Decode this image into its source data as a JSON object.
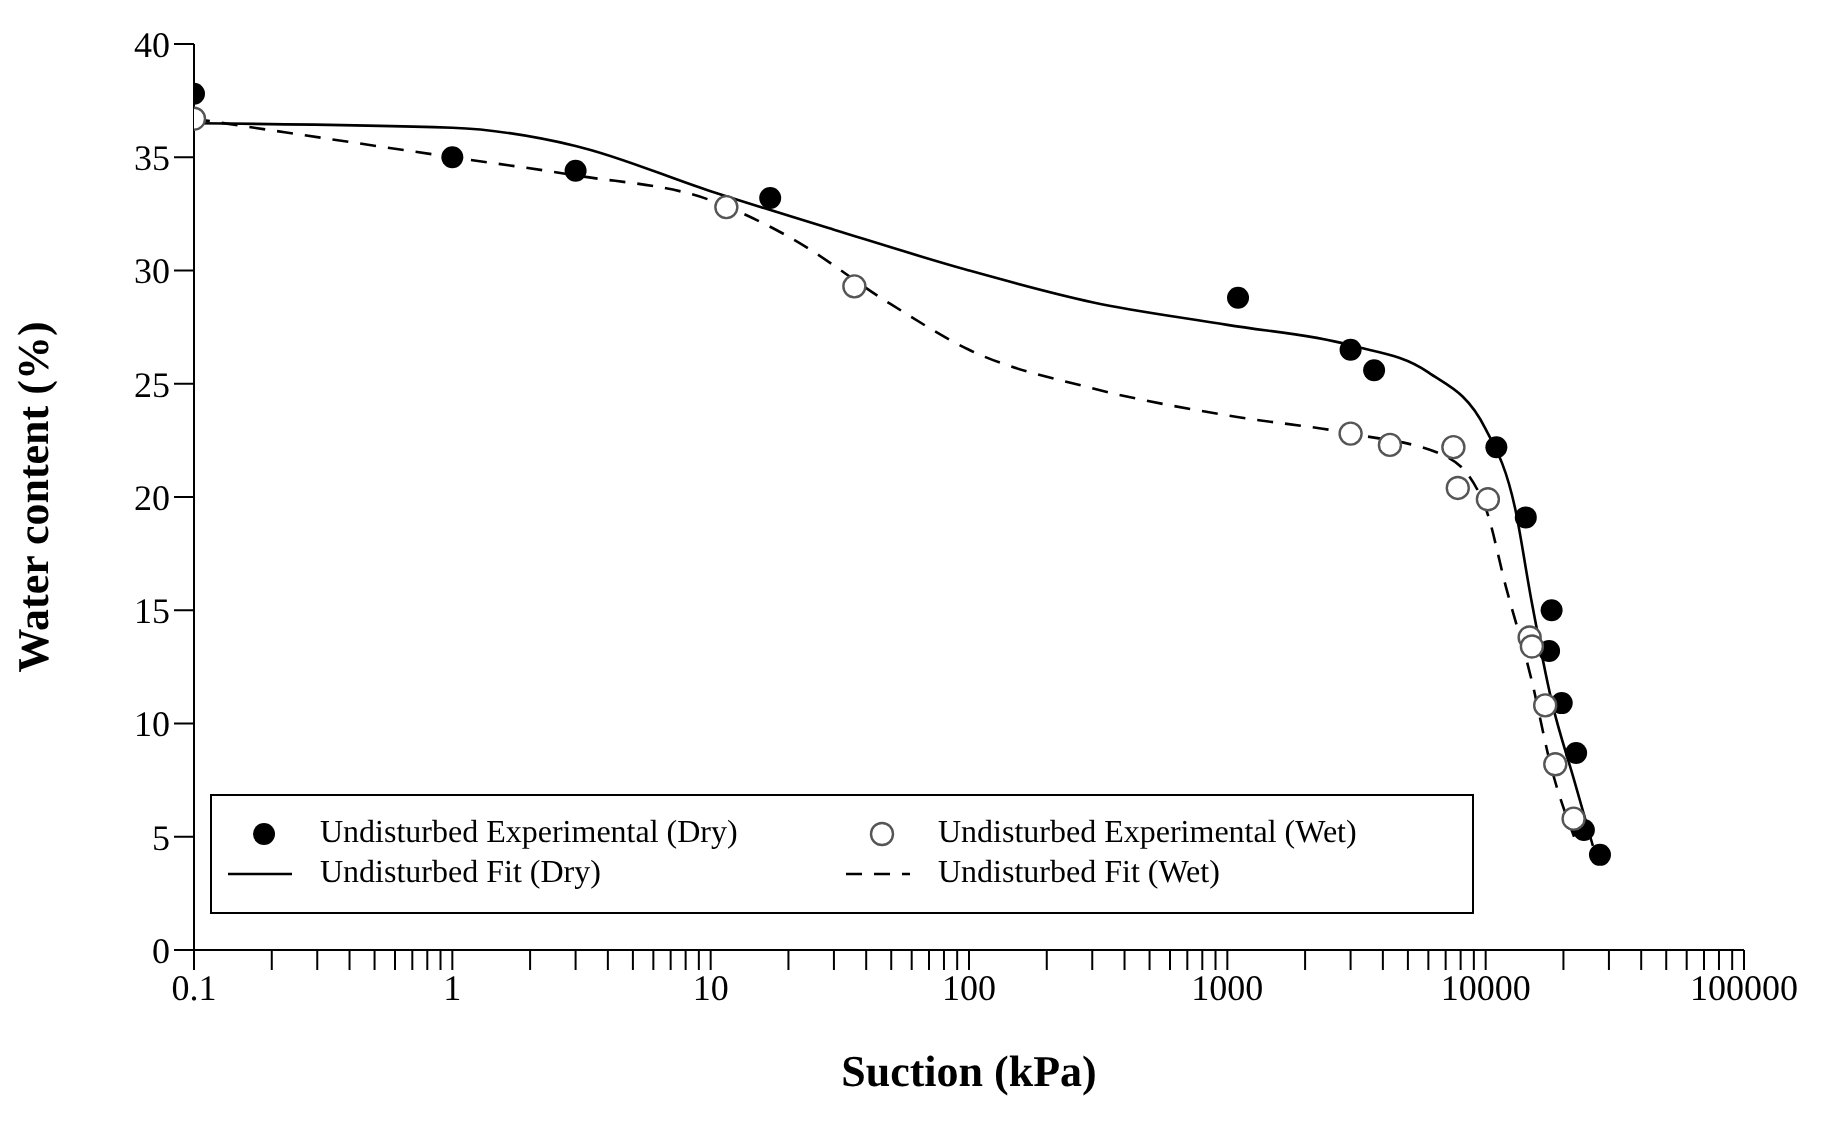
{
  "chart_data": {
    "type": "scatter",
    "xlabel": "Suction (kPa)",
    "ylabel": "Water content (%)",
    "log": "x",
    "xlim": [
      0.1,
      100000
    ],
    "ylim": [
      0,
      40
    ],
    "xticks": [
      0.1,
      {
        "value": 0.2,
        "label": null
      },
      {
        "value": 0.3,
        "label": null
      },
      {
        "value": 0.4,
        "label": null
      },
      {
        "value": 0.5,
        "label": null
      },
      {
        "value": 0.6,
        "label": null
      },
      {
        "value": 0.7,
        "label": null
      },
      {
        "value": 0.8,
        "label": null
      },
      {
        "value": 0.9,
        "label": null
      },
      1,
      {
        "value": 2,
        "label": null
      },
      {
        "value": 3,
        "label": null
      },
      {
        "value": 4,
        "label": null
      },
      {
        "value": 5,
        "label": null
      },
      {
        "value": 6,
        "label": null
      },
      {
        "value": 7,
        "label": null
      },
      {
        "value": 8,
        "label": null
      },
      {
        "value": 9,
        "label": null
      },
      10,
      {
        "value": 20,
        "label": null
      },
      {
        "value": 30,
        "label": null
      },
      {
        "value": 40,
        "label": null
      },
      {
        "value": 50,
        "label": null
      },
      {
        "value": 60,
        "label": null
      },
      {
        "value": 70,
        "label": null
      },
      {
        "value": 80,
        "label": null
      },
      {
        "value": 90,
        "label": null
      },
      100,
      {
        "value": 200,
        "label": null
      },
      {
        "value": 300,
        "label": null
      },
      {
        "value": 400,
        "label": null
      },
      {
        "value": 500,
        "label": null
      },
      {
        "value": 600,
        "label": null
      },
      {
        "value": 700,
        "label": null
      },
      {
        "value": 800,
        "label": null
      },
      {
        "value": 900,
        "label": null
      },
      1000,
      {
        "value": 2000,
        "label": null
      },
      {
        "value": 3000,
        "label": null
      },
      {
        "value": 4000,
        "label": null
      },
      {
        "value": 5000,
        "label": null
      },
      {
        "value": 6000,
        "label": null
      },
      {
        "value": 7000,
        "label": null
      },
      {
        "value": 8000,
        "label": null
      },
      {
        "value": 9000,
        "label": null
      },
      10000,
      {
        "value": 20000,
        "label": null
      },
      {
        "value": 30000,
        "label": null
      },
      {
        "value": 40000,
        "label": null
      },
      {
        "value": 50000,
        "label": null
      },
      {
        "value": 60000,
        "label": null
      },
      {
        "value": 70000,
        "label": null
      },
      {
        "value": 80000,
        "label": null
      },
      {
        "value": 90000,
        "label": null
      },
      100000
    ],
    "yticks": [
      0,
      5,
      10,
      15,
      20,
      25,
      30,
      35,
      40
    ],
    "grid": false,
    "legend": "bottom left",
    "series": [
      {
        "name": "Undisturbed Experimental (Dry)",
        "marker": "circle",
        "color": "#000000",
        "x": [
          0.1,
          1,
          3,
          17,
          1100,
          3000,
          3700,
          11000,
          14300,
          18000,
          17600,
          19700,
          22400,
          24000,
          27700
        ],
        "values": [
          37.8,
          35.0,
          34.4,
          33.2,
          28.8,
          26.5,
          25.6,
          22.2,
          19.1,
          15.0,
          13.2,
          10.9,
          8.7,
          5.3,
          4.2
        ]
      },
      {
        "name": "Undisturbed Experimental (Wet)",
        "marker": "circle",
        "color": "#555555",
        "x": [
          0.1,
          11.5,
          36,
          3000,
          4260,
          7500,
          7800,
          10200,
          14800,
          15100,
          17000,
          18600,
          21900
        ],
        "values": [
          36.7,
          32.8,
          29.3,
          22.8,
          22.3,
          22.2,
          20.4,
          19.9,
          13.8,
          13.4,
          10.8,
          8.2,
          5.8
        ]
      },
      {
        "name": "Undisturbed Fit (Dry)",
        "type": "line",
        "marker": "none",
        "color": "#000000",
        "line_style": "solid",
        "x": [
          0.1,
          1,
          3,
          10,
          30,
          100,
          300,
          1000,
          3000,
          6000,
          10000,
          13000,
          15000,
          18000,
          22000,
          26000
        ],
        "values": [
          36.5,
          36.3,
          35.5,
          33.5,
          31.8,
          30.0,
          28.6,
          27.6,
          26.7,
          25.5,
          23.0,
          19.5,
          15.5,
          11.0,
          7.5,
          4.6
        ]
      },
      {
        "name": "Undisturbed Fit (Wet)",
        "type": "line",
        "marker": "none",
        "color": "#000000",
        "line_style": "dashed",
        "x": [
          0.1,
          0.15,
          1,
          3,
          10,
          20,
          50,
          100,
          300,
          1000,
          3000,
          7000,
          10000,
          12000,
          15000,
          18000,
          22000
        ],
        "values": [
          36.7,
          36.4,
          35.0,
          34.2,
          33.1,
          31.5,
          28.5,
          26.5,
          24.8,
          23.6,
          22.8,
          21.8,
          19.5,
          16.0,
          12.0,
          8.0,
          5.0
        ]
      }
    ]
  }
}
